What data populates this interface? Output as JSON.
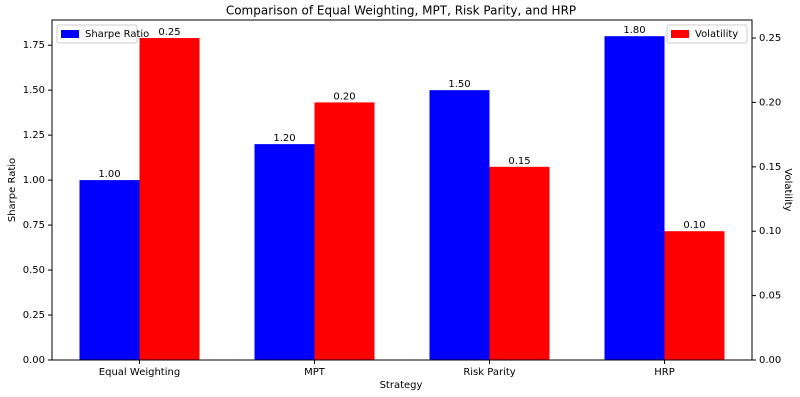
{
  "chart_data": {
    "type": "bar",
    "title": "Comparison of Equal Weighting, MPT, Risk Parity, and HRP",
    "x_label": "Strategy",
    "y_label": "Sharpe Ratio",
    "y2_label": "Volatility",
    "categories": [
      "Equal Weighting",
      "MPT",
      "Risk Parity",
      "HRP"
    ],
    "series": [
      {
        "name": "Sharpe Ratio",
        "color": "#0000ff",
        "values": [
          1.0,
          1.2,
          1.5,
          1.8
        ],
        "value_labels": [
          "1.00",
          "1.20",
          "1.50",
          "1.80"
        ],
        "legend": "upper left"
      },
      {
        "name": "Volatility",
        "color": "#ff0000",
        "axis": "y2",
        "values": [
          0.25,
          0.2,
          0.15,
          0.1
        ],
        "value_labels": [
          "0.25",
          "0.20",
          "0.15",
          "0.10"
        ],
        "legend": "upper right"
      }
    ],
    "ylim": [
      0,
      1.89
    ],
    "yticks": [
      {
        "value": 0,
        "label": "0.00"
      },
      0.25,
      {
        "value": 0.5,
        "label": "0.50"
      },
      0.75,
      {
        "value": 1,
        "label": "1.00"
      },
      1.25,
      {
        "value": 1.5,
        "label": "1.50"
      },
      1.75
    ],
    "y2lim": [
      0,
      0.264
    ],
    "y2ticks": [
      {
        "value": 0,
        "label": "0.00"
      },
      0.05,
      {
        "value": 0.1,
        "label": "0.10"
      },
      0.15,
      {
        "value": 0.2,
        "label": "0.20"
      },
      0.25
    ]
  }
}
